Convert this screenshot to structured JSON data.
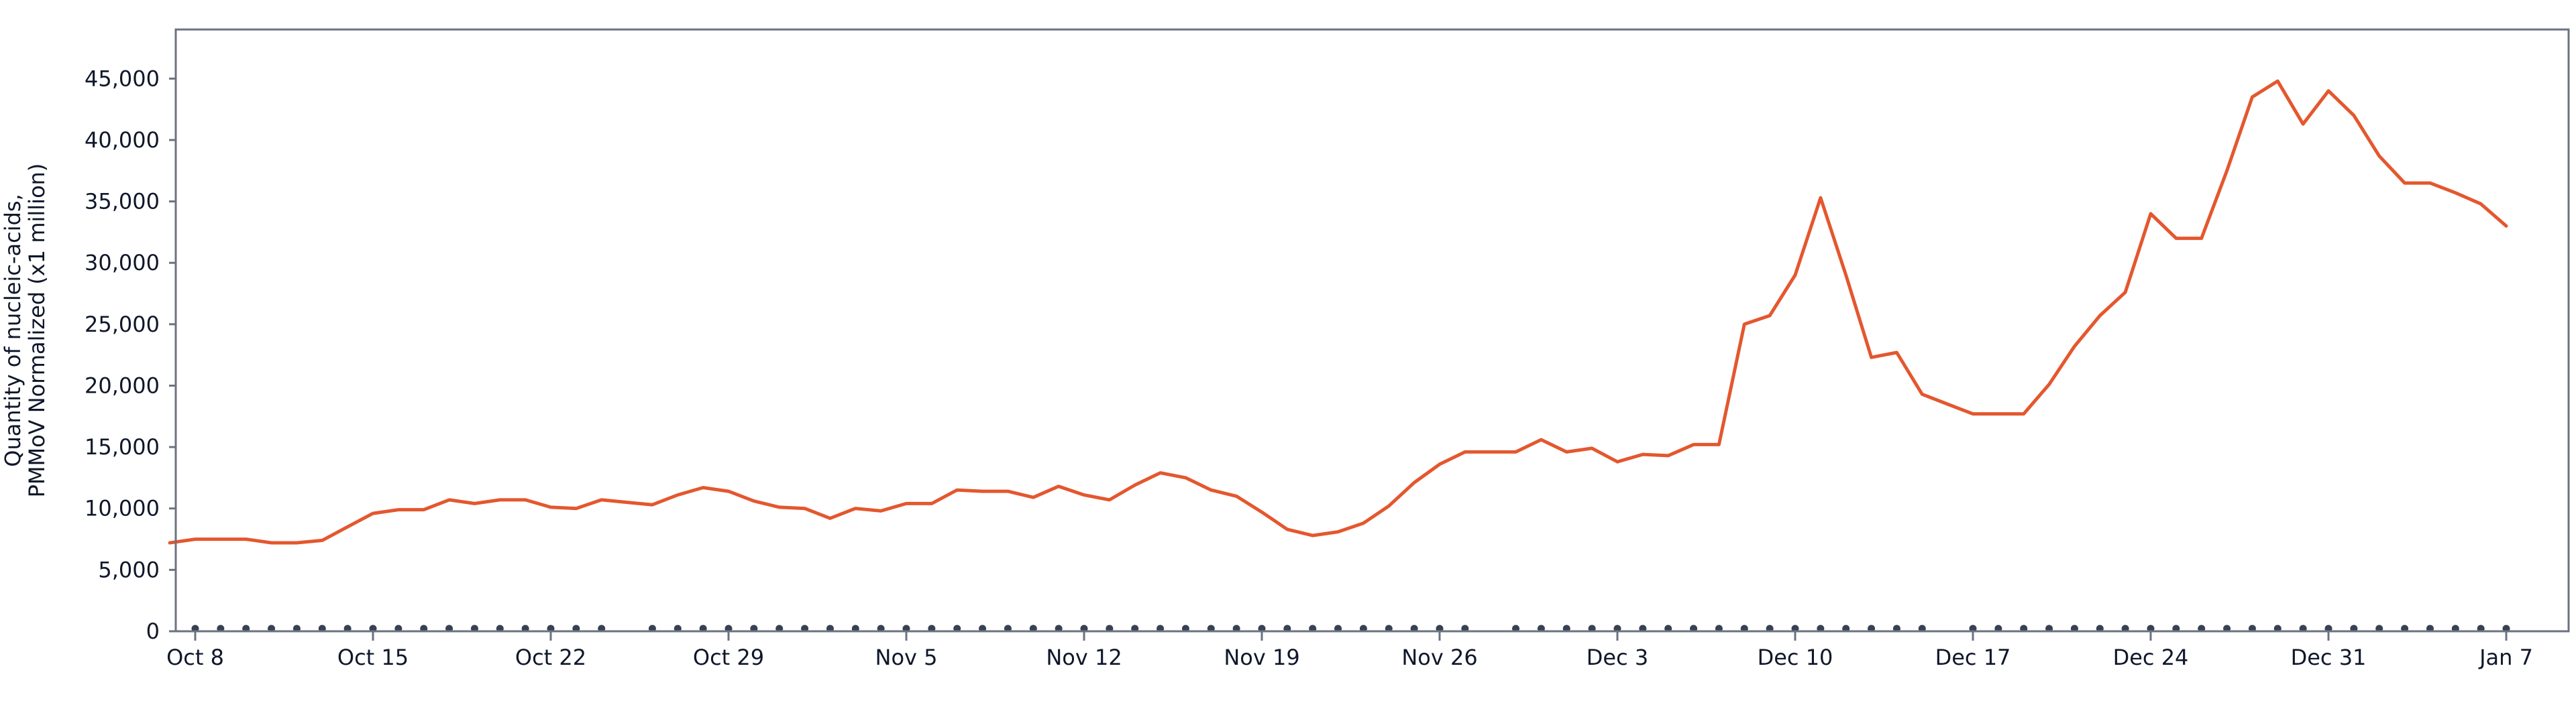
{
  "chart_data": {
    "type": "line",
    "title": "",
    "xlabel": "",
    "ylabel_lines": [
      "Quantity of nucleic-acids,",
      "PMMoV Normalized (x1 million)"
    ],
    "ylim": [
      0,
      49000
    ],
    "yticks": [
      0,
      5000,
      10000,
      15000,
      20000,
      25000,
      30000,
      35000,
      40000,
      45000
    ],
    "ytick_labels": [
      "0",
      "5,000",
      "10,000",
      "15,000",
      "20,000",
      "25,000",
      "30,000",
      "35,000",
      "40,000",
      "45,000"
    ],
    "x_start": "2023-10-08",
    "x_end": "2024-01-07",
    "xticks": [
      "2023-10-08",
      "2023-10-15",
      "2023-10-22",
      "2023-10-29",
      "2023-11-05",
      "2023-11-12",
      "2023-11-19",
      "2023-11-26",
      "2023-12-03",
      "2023-12-10",
      "2023-12-17",
      "2023-12-24",
      "2023-12-31",
      "2024-01-07"
    ],
    "xtick_labels": [
      "Oct 8",
      "Oct 15",
      "Oct 22",
      "Oct 29",
      "Nov 5",
      "Nov 12",
      "Nov 19",
      "Nov 26",
      "Dec 3",
      "Dec 10",
      "Dec 17",
      "Dec 24",
      "Dec 31",
      "Jan 7"
    ],
    "grid": false,
    "line_color": "#e4572e",
    "axis_color": "#6b7280",
    "marker_color": "#374151",
    "sample_days": [
      "2023-10-08",
      "2023-10-09",
      "2023-10-10",
      "2023-10-11",
      "2023-10-12",
      "2023-10-13",
      "2023-10-14",
      "2023-10-15",
      "2023-10-16",
      "2023-10-17",
      "2023-10-18",
      "2023-10-19",
      "2023-10-20",
      "2023-10-21",
      "2023-10-22",
      "2023-10-23",
      "2023-10-24",
      "2023-10-26",
      "2023-10-27",
      "2023-10-28",
      "2023-10-29",
      "2023-10-30",
      "2023-10-31",
      "2023-11-01",
      "2023-11-02",
      "2023-11-03",
      "2023-11-04",
      "2023-11-05",
      "2023-11-06",
      "2023-11-07",
      "2023-11-08",
      "2023-11-09",
      "2023-11-10",
      "2023-11-11",
      "2023-11-12",
      "2023-11-13",
      "2023-11-14",
      "2023-11-15",
      "2023-11-16",
      "2023-11-17",
      "2023-11-18",
      "2023-11-19",
      "2023-11-20",
      "2023-11-21",
      "2023-11-22",
      "2023-11-23",
      "2023-11-24",
      "2023-11-25",
      "2023-11-26",
      "2023-11-27",
      "2023-11-29",
      "2023-11-30",
      "2023-12-01",
      "2023-12-02",
      "2023-12-03",
      "2023-12-04",
      "2023-12-05",
      "2023-12-06",
      "2023-12-07",
      "2023-12-08",
      "2023-12-09",
      "2023-12-10",
      "2023-12-11",
      "2023-12-12",
      "2023-12-13",
      "2023-12-14",
      "2023-12-15",
      "2023-12-17",
      "2023-12-18",
      "2023-12-19",
      "2023-12-20",
      "2023-12-21",
      "2023-12-22",
      "2023-12-23",
      "2023-12-24",
      "2023-12-25",
      "2023-12-26",
      "2023-12-27",
      "2023-12-28",
      "2023-12-29",
      "2023-12-30",
      "2023-12-31",
      "2024-01-01",
      "2024-01-02",
      "2024-01-03",
      "2024-01-04",
      "2024-01-05",
      "2024-01-06",
      "2024-01-07"
    ],
    "series": [
      {
        "x": [
          "2023-10-07",
          "2023-10-08",
          "2023-10-09",
          "2023-10-10",
          "2023-10-11",
          "2023-10-12",
          "2023-10-13",
          "2023-10-14",
          "2023-10-15",
          "2023-10-16",
          "2023-10-17",
          "2023-10-18",
          "2023-10-19",
          "2023-10-20",
          "2023-10-21",
          "2023-10-22",
          "2023-10-23",
          "2023-10-24",
          "2023-10-25",
          "2023-10-26",
          "2023-10-27",
          "2023-10-28",
          "2023-10-29",
          "2023-10-30",
          "2023-10-31",
          "2023-11-01",
          "2023-11-02",
          "2023-11-03",
          "2023-11-04",
          "2023-11-05",
          "2023-11-06",
          "2023-11-07",
          "2023-11-08",
          "2023-11-09",
          "2023-11-10",
          "2023-11-11",
          "2023-11-12",
          "2023-11-13",
          "2023-11-14",
          "2023-11-15",
          "2023-11-16",
          "2023-11-17",
          "2023-11-18",
          "2023-11-19",
          "2023-11-20",
          "2023-11-21",
          "2023-11-22",
          "2023-11-23",
          "2023-11-24",
          "2023-11-25",
          "2023-11-26",
          "2023-11-27",
          "2023-11-28",
          "2023-11-29",
          "2023-11-30",
          "2023-12-01",
          "2023-12-02",
          "2023-12-03",
          "2023-12-04",
          "2023-12-05",
          "2023-12-06",
          "2023-12-07",
          "2023-12-08",
          "2023-12-09",
          "2023-12-10",
          "2023-12-11",
          "2023-12-12",
          "2023-12-13",
          "2023-12-14",
          "2023-12-15",
          "2023-12-16",
          "2023-12-17",
          "2023-12-18",
          "2023-12-19",
          "2023-12-20",
          "2023-12-21",
          "2023-12-22",
          "2023-12-23",
          "2023-12-24",
          "2023-12-25",
          "2023-12-26",
          "2023-12-27",
          "2023-12-28",
          "2023-12-29",
          "2023-12-30",
          "2023-12-31",
          "2024-01-01",
          "2024-01-02",
          "2024-01-03",
          "2024-01-04",
          "2024-01-05",
          "2024-01-06",
          "2024-01-07"
        ],
        "y": [
          7200,
          7500,
          7500,
          7500,
          7200,
          7200,
          7400,
          8500,
          9600,
          9900,
          9900,
          10700,
          10400,
          10700,
          10700,
          10100,
          10000,
          10700,
          10500,
          10300,
          11100,
          11700,
          11400,
          10600,
          10100,
          10000,
          9200,
          10000,
          9800,
          10400,
          10400,
          11500,
          11400,
          11400,
          10900,
          11800,
          11100,
          10700,
          11900,
          12900,
          12500,
          11500,
          11000,
          9700,
          8300,
          7800,
          8100,
          8800,
          10200,
          12100,
          13600,
          14600,
          14600,
          14600,
          15600,
          14600,
          14900,
          13800,
          14400,
          14300,
          15200,
          15200,
          25000,
          25700,
          29000,
          35300,
          29000,
          22300,
          22700,
          19300,
          18500,
          17700,
          17700,
          17700,
          20100,
          23200,
          25700,
          27600,
          34000,
          32000,
          32000,
          37500,
          43500,
          44800,
          41300,
          44000,
          42000,
          38700,
          36500,
          36500,
          35700,
          34800,
          33000
        ]
      }
    ]
  }
}
